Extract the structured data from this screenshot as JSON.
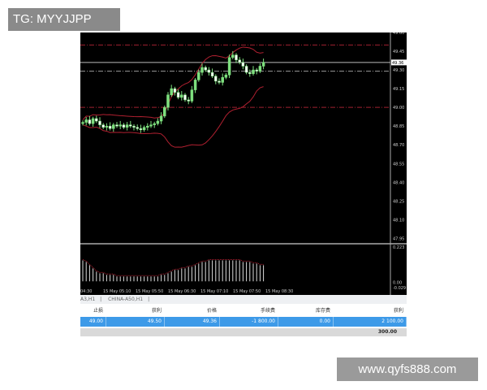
{
  "watermark_top": "TG: MYYJJPP",
  "watermark_bottom": "www.qyfs888.com",
  "tabs": [
    "A3,H1",
    "CHINA-A50,H1"
  ],
  "table": {
    "headers": [
      "止损",
      "获利",
      "价格",
      "手续费",
      "库存费",
      "获利"
    ],
    "row": [
      "49.00",
      "49.50",
      "49.36",
      "-1 800.00",
      "0.00",
      "2 100.00"
    ],
    "total": "300.00"
  },
  "chart_data": {
    "type": "candlestick",
    "symbol": "CHINA-A50,H1",
    "yticks": [
      "49.60",
      "49.45",
      "49.30",
      "49.15",
      "49.00",
      "48.85",
      "48.70",
      "48.55",
      "48.40",
      "48.25",
      "48.10",
      "47.95"
    ],
    "ylim": [
      47.92,
      49.6
    ],
    "current_price": "49.36",
    "levels": {
      "take_profit": 49.5,
      "entry": 49.29,
      "stop_loss": 49.0
    },
    "xticks": [
      "04:30",
      "15 May 05:10",
      "15 May 05:50",
      "15 May 06:30",
      "15 May 07:10",
      "15 May 07:50",
      "15 May 08:30"
    ],
    "closes": [
      48.88,
      48.9,
      48.87,
      48.91,
      48.89,
      48.86,
      48.84,
      48.85,
      48.83,
      48.86,
      48.85,
      48.86,
      48.84,
      48.86,
      48.85,
      48.84,
      48.83,
      48.82,
      48.84,
      48.85,
      48.86,
      48.87,
      48.89,
      48.93,
      49.0,
      49.1,
      49.15,
      49.12,
      49.08,
      49.1,
      49.06,
      49.05,
      49.14,
      49.22,
      49.28,
      49.32,
      49.3,
      49.28,
      49.25,
      49.21,
      49.2,
      49.24,
      49.26,
      49.4,
      49.42,
      49.38,
      49.36,
      49.33,
      49.28,
      49.27,
      49.3,
      49.29,
      49.33,
      49.36
    ],
    "indicator": {
      "yticks": [
        "0.223",
        "0.00",
        "-0.029"
      ],
      "ylim": [
        -0.029,
        0.223
      ],
      "values": [
        0.13,
        0.12,
        0.1,
        0.08,
        0.06,
        0.05,
        0.05,
        0.04,
        0.04,
        0.04,
        0.03,
        0.03,
        0.03,
        0.03,
        0.03,
        0.03,
        0.03,
        0.03,
        0.03,
        0.03,
        0.03,
        0.03,
        0.03,
        0.04,
        0.04,
        0.05,
        0.06,
        0.07,
        0.07,
        0.08,
        0.08,
        0.09,
        0.09,
        0.1,
        0.11,
        0.12,
        0.12,
        0.13,
        0.13,
        0.13,
        0.13,
        0.13,
        0.13,
        0.13,
        0.13,
        0.13,
        0.13,
        0.12,
        0.12,
        0.12,
        0.11,
        0.11,
        0.1,
        0.1
      ]
    }
  }
}
